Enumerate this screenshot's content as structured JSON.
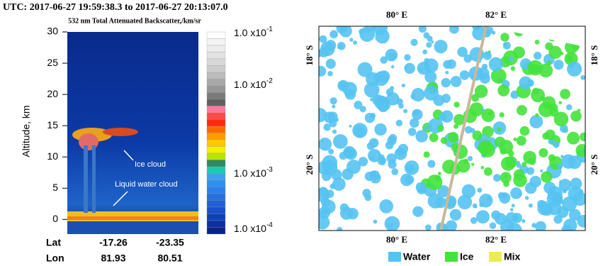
{
  "left_panel": {
    "title": "UTC: 2017-06-27 19:59:38.3 to 2017-06-27 20:13:07.0",
    "subtitle": "532 nm Total Attenuated Backscatter,/km/sr",
    "y_axis_label": "Altitude, km",
    "ylim": [
      -2,
      30
    ],
    "yticks": [
      30,
      25,
      20,
      15,
      10,
      5,
      0
    ],
    "colorbar_labels": [
      {
        "base": "1.0 x10",
        "exp": "-1"
      },
      {
        "base": "1.0 x10",
        "exp": "-2"
      },
      {
        "base": "1.0 x10",
        "exp": "-3"
      },
      {
        "base": "1.0 x10",
        "exp": "-4"
      }
    ],
    "annotations": [
      "Ice cloud",
      "Liquid water cloud"
    ],
    "footer": {
      "row_labels": [
        "Lat",
        "Lon"
      ],
      "lat": [
        -17.26,
        -23.35
      ],
      "lon": [
        81.93,
        80.51
      ]
    }
  },
  "right_panel": {
    "top_labels": [
      "80° E",
      "82° E"
    ],
    "bottom_labels": [
      "80° E",
      "82° E"
    ],
    "left_labels": [
      "18° S",
      "20° S"
    ],
    "right_labels": [
      "18° S",
      "20° S"
    ],
    "legend": [
      {
        "name": "Water",
        "color": "#55c3f2"
      },
      {
        "name": "Ice",
        "color": "#44e23c"
      },
      {
        "name": "Mix",
        "color": "#ecec55"
      }
    ]
  }
}
